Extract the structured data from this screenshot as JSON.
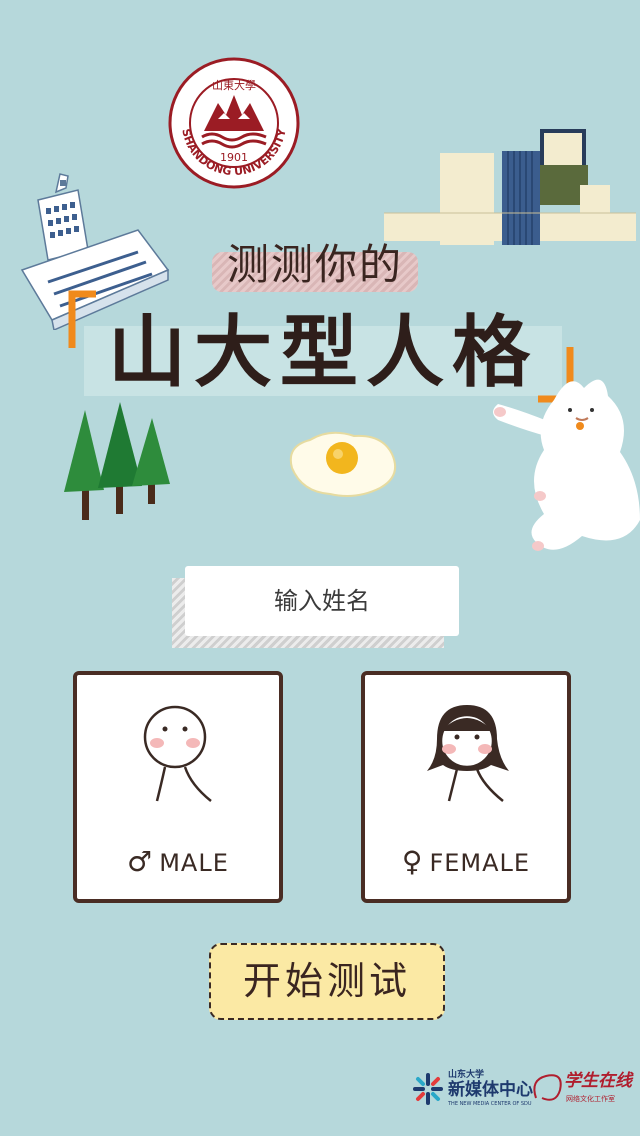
{
  "logo": {
    "ring_text": "SHANDONG UNIVERSITY",
    "year": "1901",
    "seal_script": "山東大學"
  },
  "header": {
    "subtitle": "测测你的",
    "title": "山大型人格"
  },
  "name_input": {
    "placeholder": "输入姓名"
  },
  "gender": {
    "male": {
      "symbol": "♂",
      "label": "MALE"
    },
    "female": {
      "symbol": "♀",
      "label": "FEMALE"
    }
  },
  "start_button": {
    "label": "开始测试"
  },
  "footer": {
    "left_logo": {
      "small": "山东大学",
      "big": "新媒体中心",
      "tiny": "THE NEW MEDIA CENTER OF SDU"
    },
    "right_logo": {
      "script": "学生在线",
      "small": "网络文化工作室"
    }
  },
  "colors": {
    "background": "#b6d8db",
    "card_border": "#4a2d24",
    "button_fill": "#fbe9a4",
    "bracket_orange": "#f08a1c",
    "seal_red": "#9b1c24"
  }
}
